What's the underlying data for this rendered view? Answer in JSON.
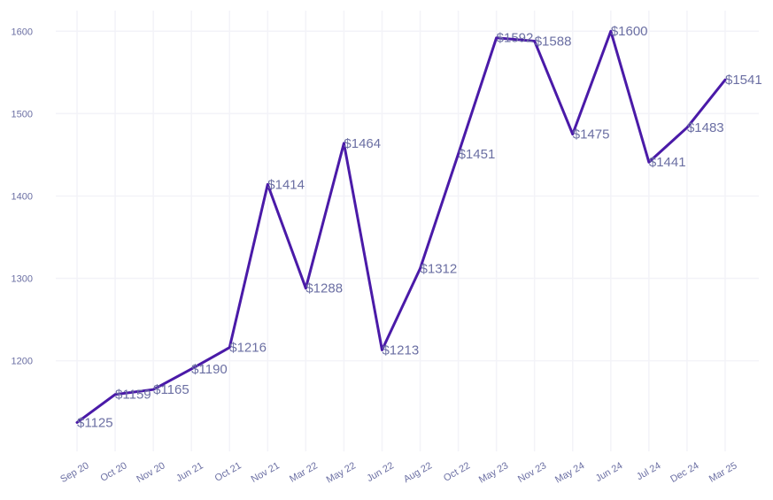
{
  "chart_data": {
    "type": "line",
    "title": "",
    "xlabel": "",
    "ylabel": "",
    "categories": [
      "Sep 20",
      "Oct 20",
      "Nov 20",
      "Jun 21",
      "Oct 21",
      "Nov 21",
      "Mar 22",
      "May 22",
      "Jun 22",
      "Aug 22",
      "Oct 22",
      "May 23",
      "Nov 23",
      "May 24",
      "Jun 24",
      "Jul 24",
      "Dec 24",
      "Mar 25"
    ],
    "values": [
      1125,
      1159,
      1165,
      1190,
      1216,
      1414,
      1288,
      1464,
      1213,
      1312,
      1451,
      1592,
      1588,
      1475,
      1600,
      1441,
      1483,
      1541
    ],
    "data_labels": [
      "$1125",
      "$1159",
      "$1165",
      "$1190",
      "$1216",
      "$1414",
      "$1288",
      "$1464",
      "$1213",
      "$1312",
      "$1451",
      "$1592",
      "$1588",
      "$1475",
      "$1600",
      "$1441",
      "$1483",
      "$1541"
    ],
    "y_ticks": [
      1200,
      1300,
      1400,
      1500,
      1600
    ],
    "ylim": [
      1090,
      1625
    ],
    "grid": true,
    "legend": "none",
    "colors": {
      "line": "#4a1aa8",
      "text": "#6b6fa3",
      "grid": "#f3f3f8"
    }
  }
}
